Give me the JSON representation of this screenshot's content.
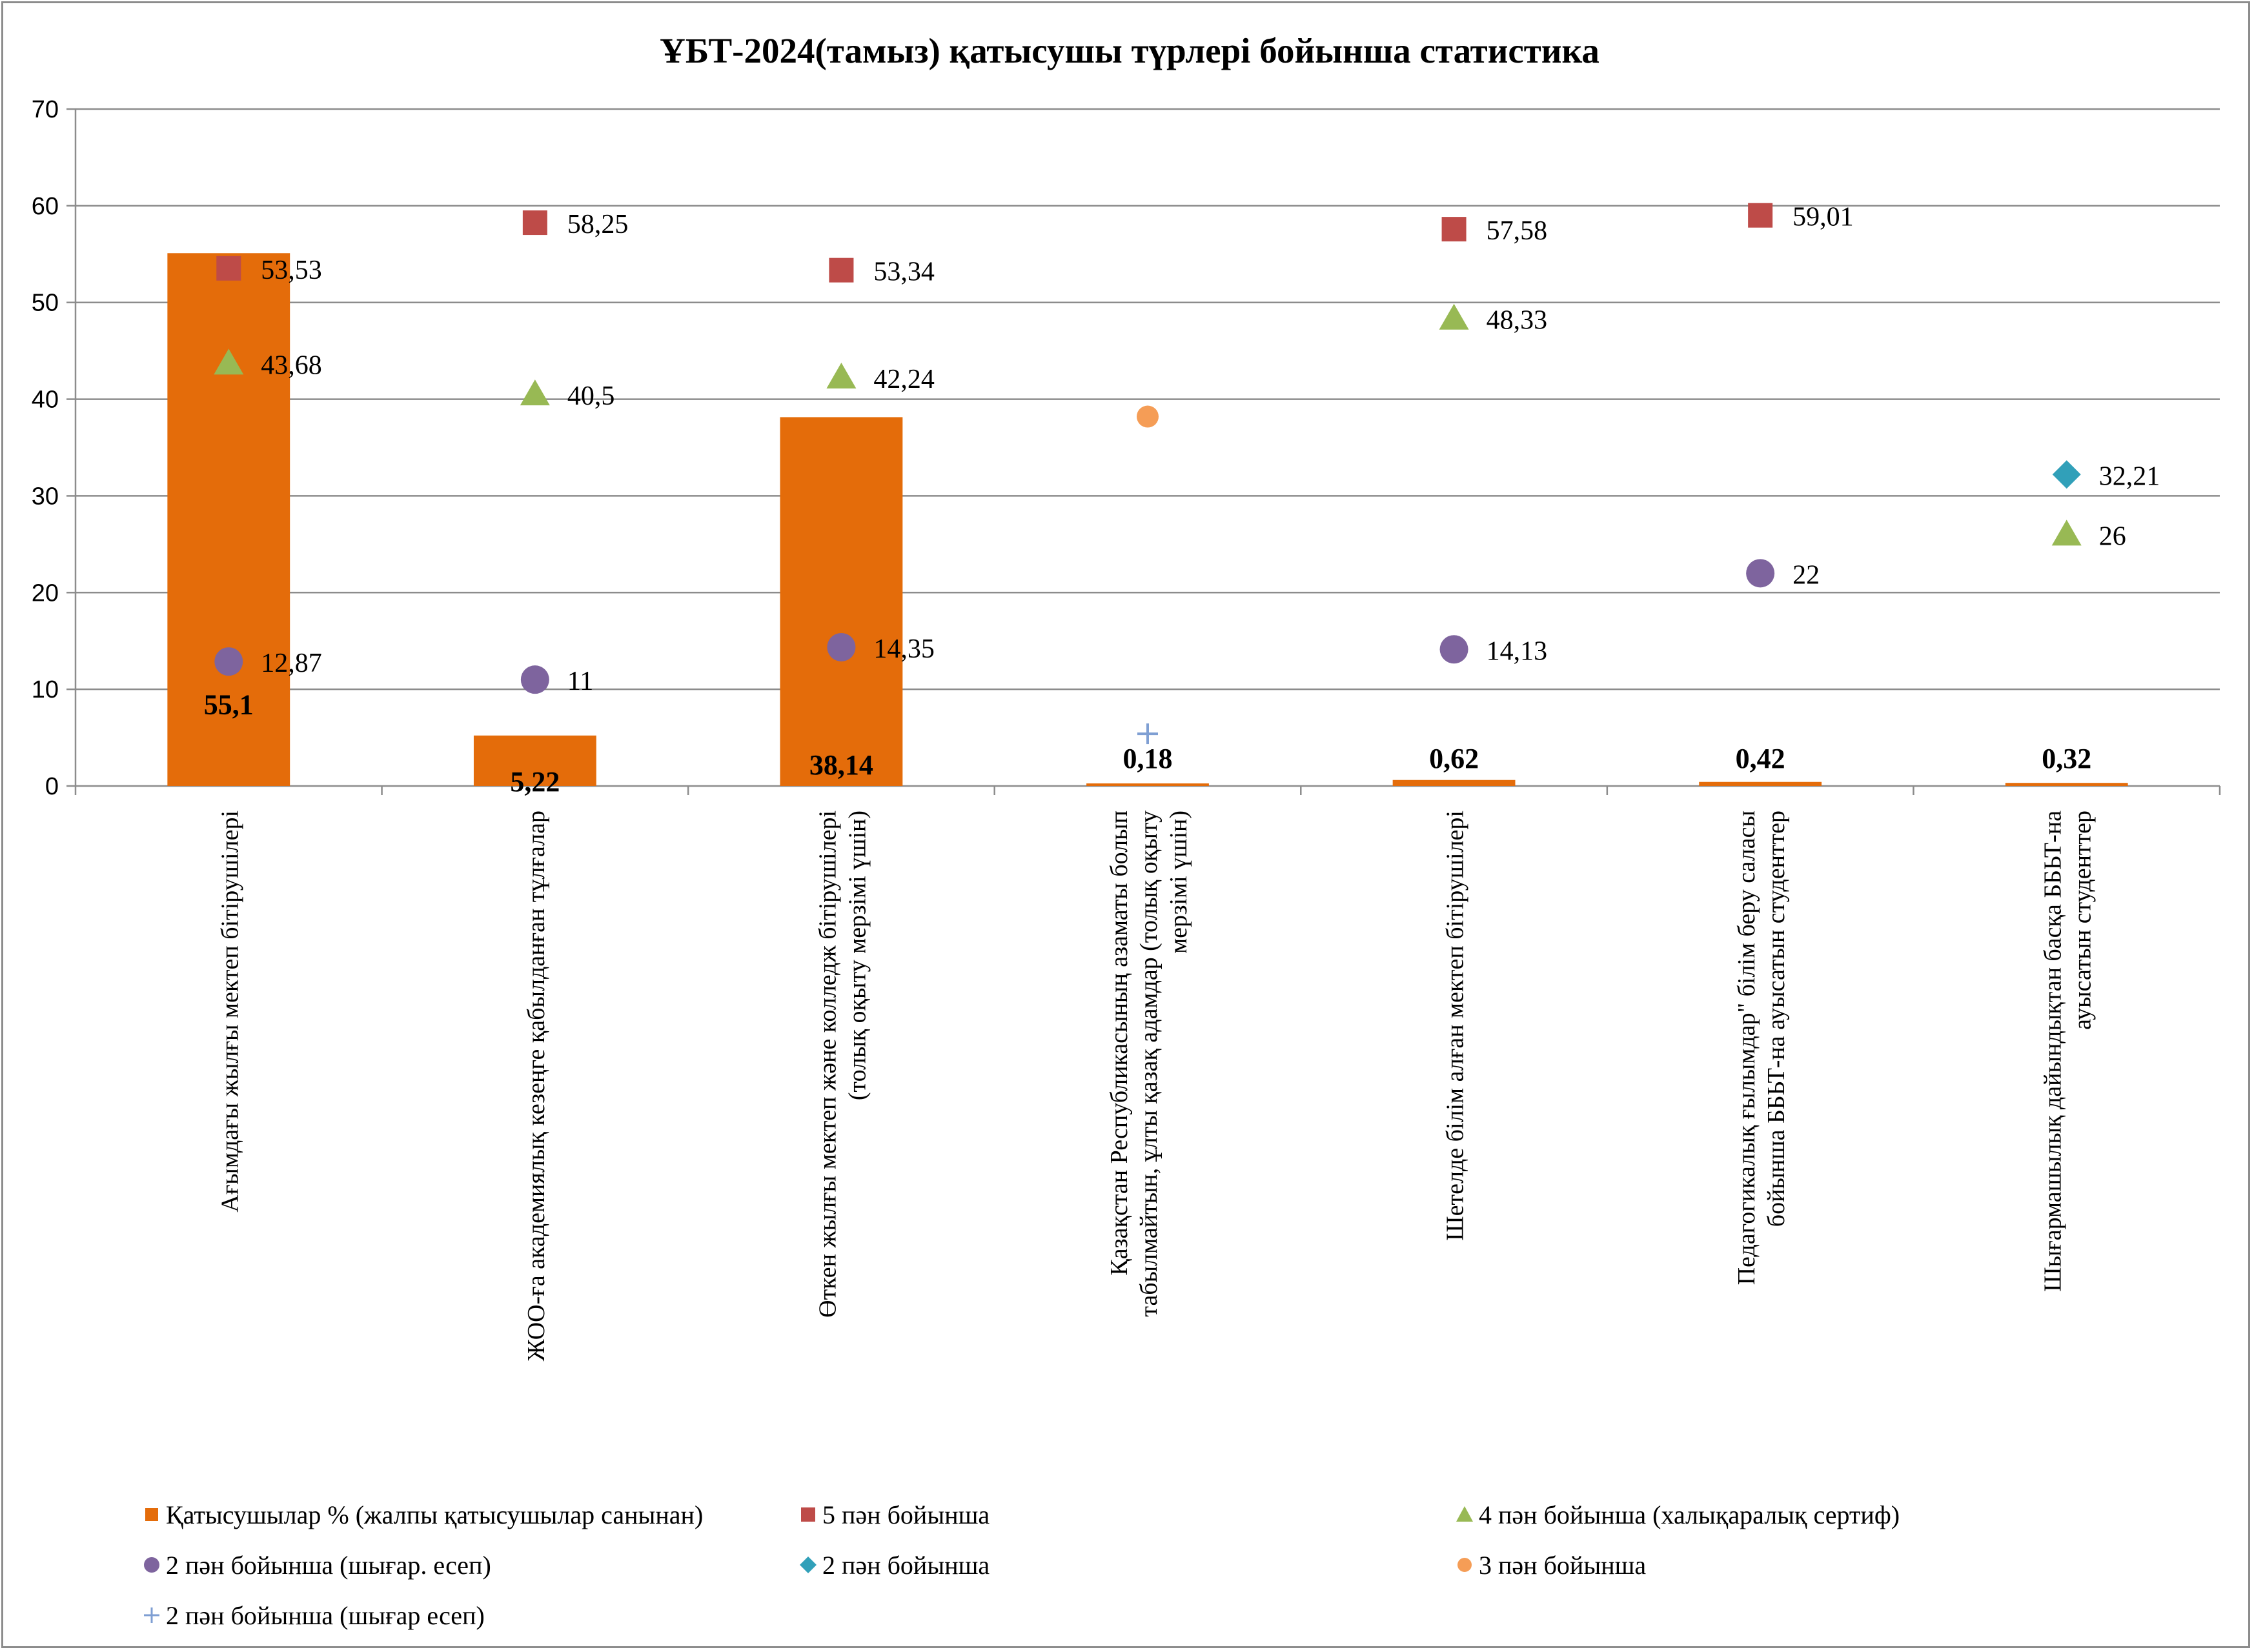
{
  "chart_data": {
    "type": "bar",
    "title": "ҰБТ-2024(тамыз) қатысушы түрлері бойынша статистика",
    "ylim": [
      0,
      70
    ],
    "yticks": [
      0,
      10,
      20,
      30,
      40,
      50,
      60,
      70
    ],
    "grid": true,
    "legend_position": "bottom",
    "categories": [
      [
        "Ағымдағы жылғы мектеп бітірушілері"
      ],
      [
        "ЖОО-ға академиялық кезеңге қабылданған тұлғалар"
      ],
      [
        "Өткен жылғы мектеп және колледж бітірушілері",
        "(толық оқыту мерзімі үшін)"
      ],
      [
        "Қазақстан Республикасының азаматы болып",
        "табылмайтын, ұлты қазақ адамдар (толық оқыту",
        "мерзімі үшін)"
      ],
      [
        "Шетелде білім алған мектеп бітірушілері"
      ],
      [
        "Педагогикалық ғылымдар\" білім беру саласы",
        "бойынша ББЬТ-на ауысатын студенттер"
      ],
      [
        "Шығармашылық дайындықтан  басқа ББЬТ-на",
        "ауысатын студенттер"
      ]
    ],
    "bars": {
      "name": "Қатысушылар % (жалпы қатысушылар санынан)",
      "color": "#e46c0a",
      "values": [
        55.1,
        5.22,
        38.14,
        0.18,
        0.62,
        0.42,
        0.32
      ],
      "labels": [
        "55,1",
        "5,22",
        "38,14",
        "0,18",
        "0,62",
        "0,42",
        "0,32"
      ]
    },
    "series": [
      {
        "name": "5 пән бойынша",
        "marker": "square",
        "color": "#be4b48",
        "values": [
          53.53,
          58.25,
          53.34,
          null,
          57.58,
          59.01,
          null
        ],
        "labels": [
          "53,53",
          "58,25",
          "53,34",
          null,
          "57,58",
          "59,01",
          null
        ]
      },
      {
        "name": "4 пән бойынша (халықаралық сертиф)",
        "marker": "triangle",
        "color": "#98b954",
        "values": [
          43.68,
          40.5,
          42.24,
          null,
          48.33,
          null,
          26
        ],
        "labels": [
          "43,68",
          "40,5",
          "42,24",
          null,
          "48,33",
          null,
          "26"
        ]
      },
      {
        "name": "2 пән бойынша (шығар. есеп)",
        "marker": "circle",
        "color": "#7e649e",
        "values": [
          12.87,
          11,
          14.35,
          null,
          14.13,
          22,
          null
        ],
        "labels": [
          "12,87",
          "11",
          "14,35",
          null,
          "14,13",
          "22",
          null
        ]
      },
      {
        "name": "2 пән бойынша",
        "marker": "diamond",
        "color": "#31a0b9",
        "values": [
          null,
          null,
          null,
          null,
          null,
          null,
          32.21
        ],
        "labels": [
          null,
          null,
          null,
          null,
          null,
          null,
          "32,21"
        ]
      },
      {
        "name": "3 пән бойынша",
        "marker": "dot",
        "color": "#f59d56",
        "values": [
          null,
          null,
          null,
          38.2,
          null,
          null,
          null
        ],
        "labels": [
          null,
          null,
          null,
          null,
          null,
          null,
          null
        ]
      },
      {
        "name": "2 пән бойынша  (шығар есеп)",
        "marker": "plus",
        "color": "#7f9fd3",
        "values": [
          null,
          null,
          null,
          5.4,
          null,
          null,
          null
        ],
        "labels": [
          null,
          null,
          null,
          null,
          null,
          null,
          null
        ]
      }
    ]
  }
}
